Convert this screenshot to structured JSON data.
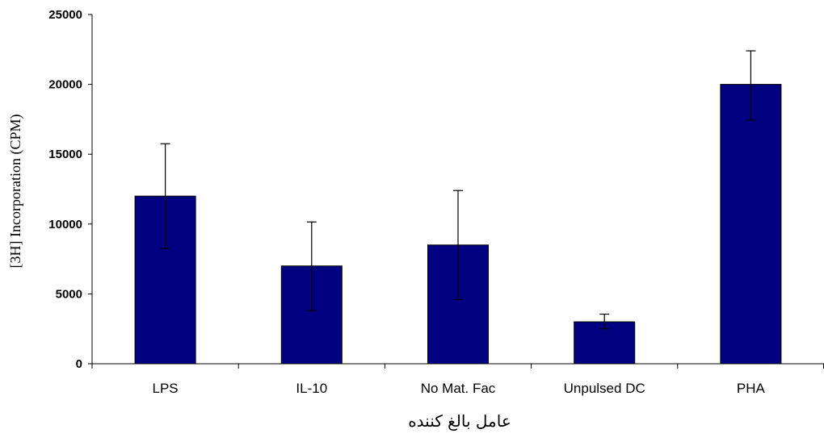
{
  "chart_data": {
    "type": "bar",
    "categories": [
      "LPS",
      "IL-10",
      "No Mat. Fac",
      "Unpulsed DC",
      "PHA"
    ],
    "series": [
      {
        "values": [
          12000,
          7000,
          8500,
          3000,
          20000
        ],
        "error_high": [
          15750,
          10150,
          12400,
          3550,
          22400
        ],
        "error_low": [
          8250,
          3800,
          4600,
          2500,
          17450
        ]
      }
    ],
    "xlabel": "عامل بالغ کننده",
    "ylabel": "[3H] Incorporation (CPM)",
    "ylim": [
      0,
      25000
    ],
    "yticks": [
      "0",
      "5000",
      "10000",
      "15000",
      "20000",
      "25000"
    ],
    "grid": false,
    "legend": "none",
    "colors": {
      "bar_fill": "#000080",
      "bar_stroke": "#000000",
      "axis": "#000000"
    }
  }
}
